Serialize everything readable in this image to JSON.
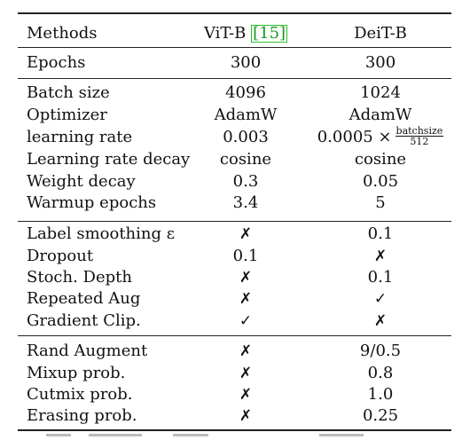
{
  "header": {
    "methods": "Methods",
    "vit": "ViT-B ",
    "vit_cite": "[15]",
    "deit": "DeiT-B"
  },
  "epochs": {
    "label": "Epochs",
    "vit": "300",
    "deit": "300"
  },
  "rows": [
    {
      "label": "Batch size",
      "vit": "4096",
      "deit": "1024"
    },
    {
      "label": "Optimizer",
      "vit": "AdamW",
      "deit": "AdamW"
    },
    {
      "label": "learning rate",
      "vit": "0.003",
      "deit": "0.0005 ×",
      "deit_frac_num": "batchsize",
      "deit_frac_den": "512"
    },
    {
      "label": "Learning rate decay",
      "vit": "cosine",
      "deit": "cosine"
    },
    {
      "label": "Weight decay",
      "vit": "0.3",
      "deit": "0.05"
    },
    {
      "label": "Warmup epochs",
      "vit": "3.4",
      "deit": "5"
    },
    {
      "label": "Label smoothing ε",
      "vit": "✗",
      "deit": "0.1"
    },
    {
      "label": "Dropout",
      "vit": "0.1",
      "deit": "✗"
    },
    {
      "label": "Stoch. Depth",
      "vit": "✗",
      "deit": "0.1"
    },
    {
      "label": "Repeated Aug",
      "vit": "✗",
      "deit": "✓"
    },
    {
      "label": "Gradient Clip.",
      "vit": "✓",
      "deit": "✗"
    },
    {
      "label": "Rand Augment",
      "vit": "✗",
      "deit": "9/0.5"
    },
    {
      "label": "Mixup prob.",
      "vit": "✗",
      "deit": "0.8"
    },
    {
      "label": "Cutmix prob.",
      "vit": "✗",
      "deit": "1.0"
    },
    {
      "label": "Erasing prob.",
      "vit": "✗",
      "deit": "0.25"
    }
  ]
}
